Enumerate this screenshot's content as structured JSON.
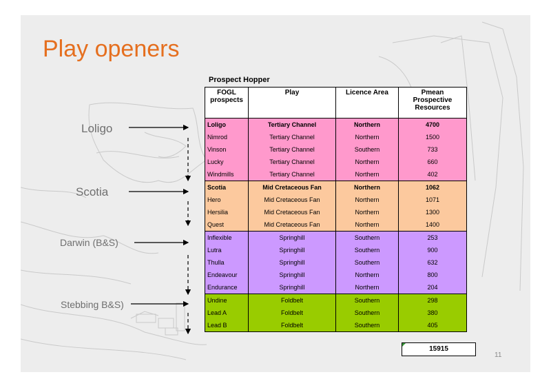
{
  "title": "Play openers",
  "table_caption": "Prospect Hopper",
  "headers": [
    "FOGL prospects",
    "Play",
    "Licence Area",
    "Pmean Prospective Resources"
  ],
  "colors": {
    "title": "#e56f1f",
    "tertiary": "#ff99cc",
    "cretaceous": "#fcc99e",
    "springhill": "#cc99ff",
    "foldbelt": "#99cc00"
  },
  "rows": [
    {
      "prospect": "Loligo",
      "play": "Tertiary Channel",
      "area": "Northern",
      "pmean": "4700",
      "bold": true,
      "color": "#ff99cc"
    },
    {
      "prospect": "Nimrod",
      "play": "Tertiary Channel",
      "area": "Northern",
      "pmean": "1500",
      "bold": false,
      "color": "#ff99cc"
    },
    {
      "prospect": "Vinson",
      "play": "Tertiary Channel",
      "area": "Southern",
      "pmean": "733",
      "bold": false,
      "color": "#ff99cc"
    },
    {
      "prospect": "Lucky",
      "play": "Tertiary Channel",
      "area": "Northern",
      "pmean": "660",
      "bold": false,
      "color": "#ff99cc"
    },
    {
      "prospect": "Windmills",
      "play": "Tertiary Channel",
      "area": "Northern",
      "pmean": "402",
      "bold": false,
      "color": "#ff99cc"
    },
    {
      "prospect": "Scotia",
      "play": "Mid Cretaceous Fan",
      "area": "Northern",
      "pmean": "1062",
      "bold": true,
      "color": "#fcc99e"
    },
    {
      "prospect": "Hero",
      "play": "Mid Cretaceous Fan",
      "area": "Northern",
      "pmean": "1071",
      "bold": false,
      "color": "#fcc99e"
    },
    {
      "prospect": "Hersilia",
      "play": "Mid Cretaceous Fan",
      "area": "Northern",
      "pmean": "1300",
      "bold": false,
      "color": "#fcc99e"
    },
    {
      "prospect": "Quest",
      "play": "Mid Cretaceous Fan",
      "area": "Northern",
      "pmean": "1400",
      "bold": false,
      "color": "#fcc99e"
    },
    {
      "prospect": "Inflexible",
      "play": "Springhill",
      "area": "Southern",
      "pmean": "253",
      "bold": false,
      "color": "#cc99ff"
    },
    {
      "prospect": "Lutra",
      "play": "Springhill",
      "area": "Southern",
      "pmean": "900",
      "bold": false,
      "color": "#cc99ff"
    },
    {
      "prospect": "Thulla",
      "play": "Springhill",
      "area": "Southern",
      "pmean": "632",
      "bold": false,
      "color": "#cc99ff"
    },
    {
      "prospect": "Endeavour",
      "play": "Springhill",
      "area": "Northern",
      "pmean": "800",
      "bold": false,
      "color": "#cc99ff"
    },
    {
      "prospect": "Endurance",
      "play": "Springhill",
      "area": "Northern",
      "pmean": "204",
      "bold": false,
      "color": "#cc99ff"
    },
    {
      "prospect": "Undine",
      "play": "Foldbelt",
      "area": "Southern",
      "pmean": "298",
      "bold": false,
      "color": "#99cc00"
    },
    {
      "prospect": "Lead A",
      "play": "Foldbelt",
      "area": "Southern",
      "pmean": "380",
      "bold": false,
      "color": "#99cc00"
    },
    {
      "prospect": "Lead B",
      "play": "Foldbelt",
      "area": "Southern",
      "pmean": "405",
      "bold": false,
      "color": "#99cc00"
    }
  ],
  "total": "15915",
  "play_labels": {
    "loligo": "Loligo",
    "scotia": "Scotia",
    "darwin": "Darwin (B&S)",
    "stebbing": "Stebbing B&S)"
  },
  "page_number": "11"
}
